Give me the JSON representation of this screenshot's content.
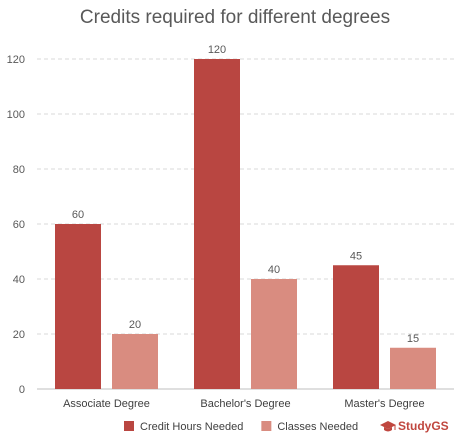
{
  "chart_data": {
    "type": "bar",
    "title": "Credits required for different degrees",
    "categories": [
      "Associate Degree",
      "Bachelor's Degree",
      "Master's Degree"
    ],
    "series": [
      {
        "name": "Credit Hours Needed",
        "values": [
          60,
          120,
          45
        ],
        "color": "#b94641"
      },
      {
        "name": "Classes Needed",
        "values": [
          20,
          40,
          15
        ],
        "color": "#d98c80"
      }
    ],
    "ylim": [
      0,
      120
    ],
    "yticks": [
      0,
      20,
      40,
      60,
      80,
      100,
      120
    ],
    "grid": true,
    "legend_position": "bottom"
  },
  "brand": {
    "name": "StudyGS",
    "color": "#c0473f",
    "icon": "graduation-cap-icon"
  }
}
